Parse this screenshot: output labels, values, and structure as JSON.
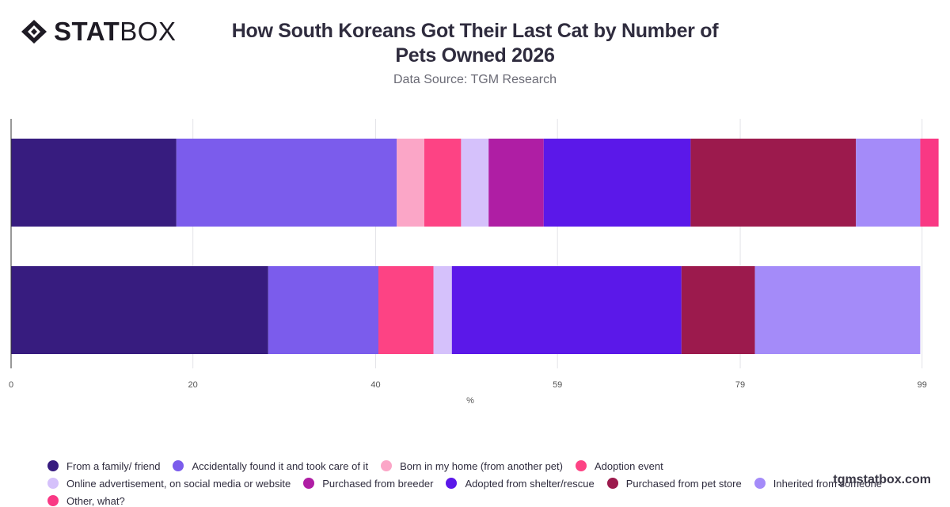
{
  "brand": {
    "logo_bold": "STAT",
    "logo_light": "BOX",
    "watermark": "tgmstatbox.com"
  },
  "chart_data": {
    "type": "bar",
    "orientation": "horizontal",
    "stacked": true,
    "title": "How South Koreans Got Their Last Cat by Number of Pets Owned 2026",
    "subtitle": "Data Source: TGM Research",
    "xlabel": "%",
    "ylabel": "",
    "xlim": [
      0,
      100
    ],
    "x_ticks": [
      "0",
      "20",
      "40",
      "59",
      "79",
      "99"
    ],
    "x_tick_values": [
      0,
      19.8,
      39.7,
      59.5,
      79.4,
      99.2
    ],
    "categories": [
      "",
      ""
    ],
    "grid": true,
    "legend_position": "bottom",
    "series": [
      {
        "name": "From a family/ friend",
        "color": "#371c7f",
        "values": [
          18,
          28
        ]
      },
      {
        "name": "Accidentally found it and took care of it",
        "color": "#7b5cec",
        "values": [
          24,
          12
        ]
      },
      {
        "name": "Born in my home (from another pet)",
        "color": "#fba6c7",
        "values": [
          3,
          0
        ]
      },
      {
        "name": "Adoption event",
        "color": "#fd4384",
        "values": [
          4,
          6
        ]
      },
      {
        "name": "Online advertisement, on social media or website",
        "color": "#d5c1fb",
        "values": [
          3,
          2
        ]
      },
      {
        "name": "Purchased from breeder",
        "color": "#af1ea4",
        "values": [
          6,
          0
        ]
      },
      {
        "name": "Adopted from shelter/rescue",
        "color": "#5b18e9",
        "values": [
          16,
          25
        ]
      },
      {
        "name": "Purchased from pet store",
        "color": "#9c1a4d",
        "values": [
          18,
          8
        ]
      },
      {
        "name": "Inherited from someone",
        "color": "#a48bf9",
        "values": [
          7,
          18
        ]
      },
      {
        "name": "Other, what?",
        "color": "#f93884",
        "values": [
          2,
          0
        ]
      }
    ]
  }
}
